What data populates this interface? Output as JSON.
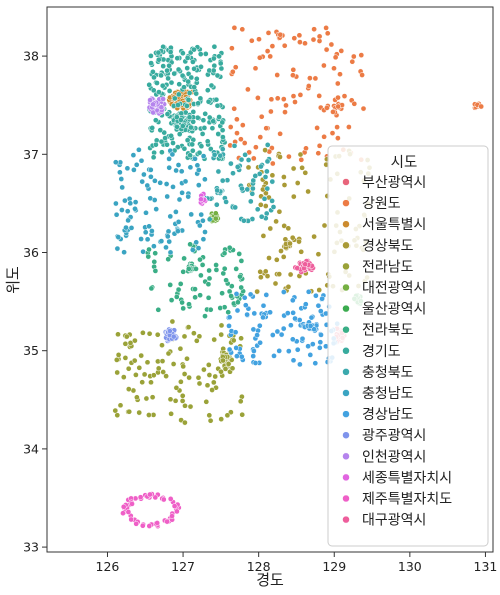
{
  "chart_data": {
    "type": "scatter",
    "title": "",
    "xlabel": "경도",
    "ylabel": "위도",
    "xlim": [
      125.2,
      131.1
    ],
    "ylim": [
      32.95,
      38.5
    ],
    "xticks": [
      126,
      127,
      128,
      129,
      130,
      131
    ],
    "yticks": [
      33,
      34,
      35,
      36,
      37,
      38
    ],
    "grid": false,
    "legend": {
      "title": "시도",
      "position": "right",
      "entries": [
        {
          "name": "부산광역시",
          "color": "#e8647b"
        },
        {
          "name": "강원도",
          "color": "#ec7b45"
        },
        {
          "name": "서울특별시",
          "color": "#cc8b2f"
        },
        {
          "name": "경상북도",
          "color": "#a99a36"
        },
        {
          "name": "전라남도",
          "color": "#9aa238"
        },
        {
          "name": "대전광역시",
          "color": "#75b042"
        },
        {
          "name": "울산광역시",
          "color": "#3bab4f"
        },
        {
          "name": "전라북도",
          "color": "#3aae86"
        },
        {
          "name": "경기도",
          "color": "#38ab9e"
        },
        {
          "name": "충청북도",
          "color": "#3ba9ad"
        },
        {
          "name": "충청남도",
          "color": "#3aa4c2"
        },
        {
          "name": "경상남도",
          "color": "#42a2e0"
        },
        {
          "name": "광주광역시",
          "color": "#7f94ec"
        },
        {
          "name": "인천광역시",
          "color": "#b584ed"
        },
        {
          "name": "세종특별자치시",
          "color": "#e165e0"
        },
        {
          "name": "제주특별자치도",
          "color": "#ef5fc7"
        },
        {
          "name": "대구광역시",
          "color": "#ee5e9c"
        }
      ]
    },
    "series": [
      {
        "name": "부산광역시",
        "clusters": [
          {
            "x": [
              128.95,
              129.2
            ],
            "y": [
              35.05,
              35.25
            ],
            "n": 35,
            "spread": 1
          }
        ]
      },
      {
        "name": "강원도",
        "clusters": [
          {
            "x": [
              127.6,
              129.4
            ],
            "y": [
              36.9,
              38.3
            ],
            "n": 110,
            "spread": 0
          },
          {
            "x": [
              128.8,
              129.2
            ],
            "y": [
              37.4,
              37.55
            ],
            "n": 14,
            "spread": 1
          },
          {
            "x": [
              128.2,
              128.35
            ],
            "y": [
              38.15,
              38.25
            ],
            "n": 6,
            "spread": 1
          },
          {
            "x": [
              130.8,
              130.95
            ],
            "y": [
              37.45,
              37.55
            ],
            "n": 8,
            "spread": 1
          }
        ]
      },
      {
        "name": "서울특별시",
        "clusters": [
          {
            "x": [
              126.8,
              127.15
            ],
            "y": [
              37.43,
              37.68
            ],
            "n": 150,
            "spread": 1
          }
        ]
      },
      {
        "name": "경상북도",
        "clusters": [
          {
            "x": [
              127.8,
              129.5
            ],
            "y": [
              35.6,
              37.05
            ],
            "n": 110,
            "spread": 0
          },
          {
            "x": [
              128.3,
              128.45
            ],
            "y": [
              36.02,
              36.15
            ],
            "n": 14,
            "spread": 1
          }
        ]
      },
      {
        "name": "전라남도",
        "clusters": [
          {
            "x": [
              126.1,
              127.8
            ],
            "y": [
              34.25,
              35.3
            ],
            "n": 120,
            "spread": 0
          },
          {
            "x": [
              127.45,
              127.7
            ],
            "y": [
              34.75,
              35.0
            ],
            "n": 22,
            "spread": 1
          }
        ]
      },
      {
        "name": "대전광역시",
        "clusters": [
          {
            "x": [
              127.33,
              127.48
            ],
            "y": [
              36.28,
              36.42
            ],
            "n": 24,
            "spread": 1
          }
        ]
      },
      {
        "name": "울산광역시",
        "clusters": [
          {
            "x": [
              129.2,
              129.4
            ],
            "y": [
              35.45,
              35.6
            ],
            "n": 16,
            "spread": 1
          }
        ]
      },
      {
        "name": "전라북도",
        "clusters": [
          {
            "x": [
              126.5,
              127.8
            ],
            "y": [
              35.35,
              36.1
            ],
            "n": 80,
            "spread": 0
          },
          {
            "x": [
              127.0,
              127.2
            ],
            "y": [
              35.78,
              35.9
            ],
            "n": 16,
            "spread": 1
          }
        ]
      },
      {
        "name": "경기도",
        "clusters": [
          {
            "x": [
              126.55,
              127.55
            ],
            "y": [
              36.95,
              38.1
            ],
            "n": 250,
            "spread": 0
          },
          {
            "x": [
              126.8,
              127.2
            ],
            "y": [
              37.2,
              37.45
            ],
            "n": 60,
            "spread": 1
          }
        ]
      },
      {
        "name": "충청북도",
        "clusters": [
          {
            "x": [
              127.3,
              128.2
            ],
            "y": [
              36.3,
              37.1
            ],
            "n": 60,
            "spread": 0
          },
          {
            "x": [
              127.4,
              127.55
            ],
            "y": [
              36.58,
              36.68
            ],
            "n": 14,
            "spread": 1
          }
        ]
      },
      {
        "name": "충청남도",
        "clusters": [
          {
            "x": [
              126.1,
              127.3
            ],
            "y": [
              36.0,
              37.05
            ],
            "n": 110,
            "spread": 0
          }
        ]
      },
      {
        "name": "경상남도",
        "clusters": [
          {
            "x": [
              127.6,
              129.05
            ],
            "y": [
              34.85,
              35.6
            ],
            "n": 110,
            "spread": 0
          },
          {
            "x": [
              128.55,
              128.8
            ],
            "y": [
              35.18,
              35.32
            ],
            "n": 20,
            "spread": 1
          }
        ]
      },
      {
        "name": "광주광역시",
        "clusters": [
          {
            "x": [
              126.72,
              126.96
            ],
            "y": [
              35.07,
              35.24
            ],
            "n": 45,
            "spread": 1
          }
        ]
      },
      {
        "name": "인천광역시",
        "clusters": [
          {
            "x": [
              126.5,
              126.8
            ],
            "y": [
              37.38,
              37.6
            ],
            "n": 55,
            "spread": 1
          }
        ]
      },
      {
        "name": "세종특별자치시",
        "clusters": [
          {
            "x": [
              127.2,
              127.32
            ],
            "y": [
              36.45,
              36.62
            ],
            "n": 14,
            "spread": 1
          }
        ]
      },
      {
        "name": "제주특별자치도",
        "clusters": [
          {
            "x": [
              126.2,
              126.95
            ],
            "y": [
              33.2,
              33.55
            ],
            "n": 60,
            "spread": 2
          }
        ]
      },
      {
        "name": "대구광역시",
        "clusters": [
          {
            "x": [
              128.45,
              128.75
            ],
            "y": [
              35.78,
              35.95
            ],
            "n": 45,
            "spread": 1
          }
        ]
      }
    ]
  }
}
